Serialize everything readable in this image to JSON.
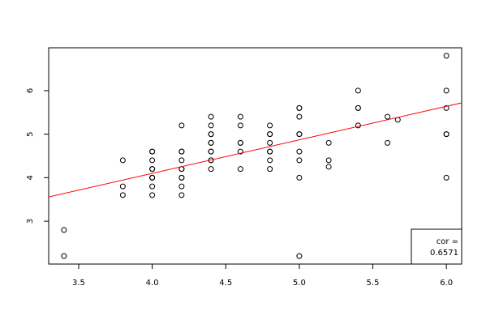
{
  "chart_data": {
    "type": "scatter",
    "x": [
      3.4,
      3.4,
      3.8,
      3.8,
      3.8,
      4.0,
      4.0,
      4.0,
      4.0,
      4.0,
      4.0,
      4.0,
      4.0,
      4.0,
      4.0,
      4.2,
      4.2,
      4.2,
      4.2,
      4.2,
      4.2,
      4.2,
      4.2,
      4.2,
      4.2,
      4.4,
      4.4,
      4.4,
      4.4,
      4.4,
      4.4,
      4.4,
      4.4,
      4.4,
      4.4,
      4.4,
      4.6,
      4.6,
      4.6,
      4.6,
      4.6,
      4.6,
      4.8,
      4.8,
      4.8,
      4.8,
      4.8,
      4.8,
      4.8,
      4.8,
      5.0,
      5.0,
      5.0,
      5.0,
      5.0,
      5.0,
      5.0,
      5.0,
      5.0,
      5.2,
      5.2,
      5.2,
      5.4,
      5.4,
      5.4,
      5.4,
      5.6,
      5.6,
      5.67,
      6.0,
      6.0,
      6.0,
      6.0,
      6.0,
      6.0
    ],
    "y": [
      2.8,
      2.2,
      4.4,
      3.8,
      3.6,
      4.6,
      4.6,
      4.4,
      4.2,
      4.2,
      4.0,
      4.0,
      4.0,
      3.8,
      3.6,
      5.2,
      4.6,
      4.6,
      4.4,
      4.2,
      4.2,
      4.0,
      4.0,
      3.8,
      3.6,
      5.4,
      5.2,
      5.0,
      5.0,
      4.8,
      4.8,
      4.6,
      4.6,
      4.4,
      4.4,
      4.2,
      5.4,
      5.2,
      4.8,
      4.8,
      4.6,
      4.2,
      5.2,
      5.0,
      5.0,
      4.8,
      4.6,
      4.6,
      4.4,
      4.2,
      5.6,
      5.6,
      5.4,
      5.0,
      5.0,
      4.6,
      4.4,
      4.0,
      2.2,
      4.8,
      4.4,
      4.25,
      6.0,
      5.6,
      5.6,
      5.2,
      5.4,
      4.8,
      5.33,
      6.8,
      6.0,
      5.6,
      5.0,
      5.0,
      4.0
    ],
    "point_color": "#000000",
    "regression": {
      "intercept": 1.02,
      "slope": 0.77,
      "color": "#ff0000"
    },
    "xlim": [
      3.296,
      6.104
    ],
    "ylim": [
      2.016,
      6.984
    ],
    "xticks": [
      3.5,
      {
        "value": 4,
        "label": "4.0"
      },
      4.5,
      {
        "value": 5,
        "label": "5.0"
      },
      5.5,
      {
        "value": 6,
        "label": "6.0"
      }
    ],
    "yticks": [
      3,
      4,
      5,
      6
    ],
    "legend": {
      "position": "bottomright",
      "lines": [
        "cor =",
        "0.6571"
      ]
    }
  }
}
